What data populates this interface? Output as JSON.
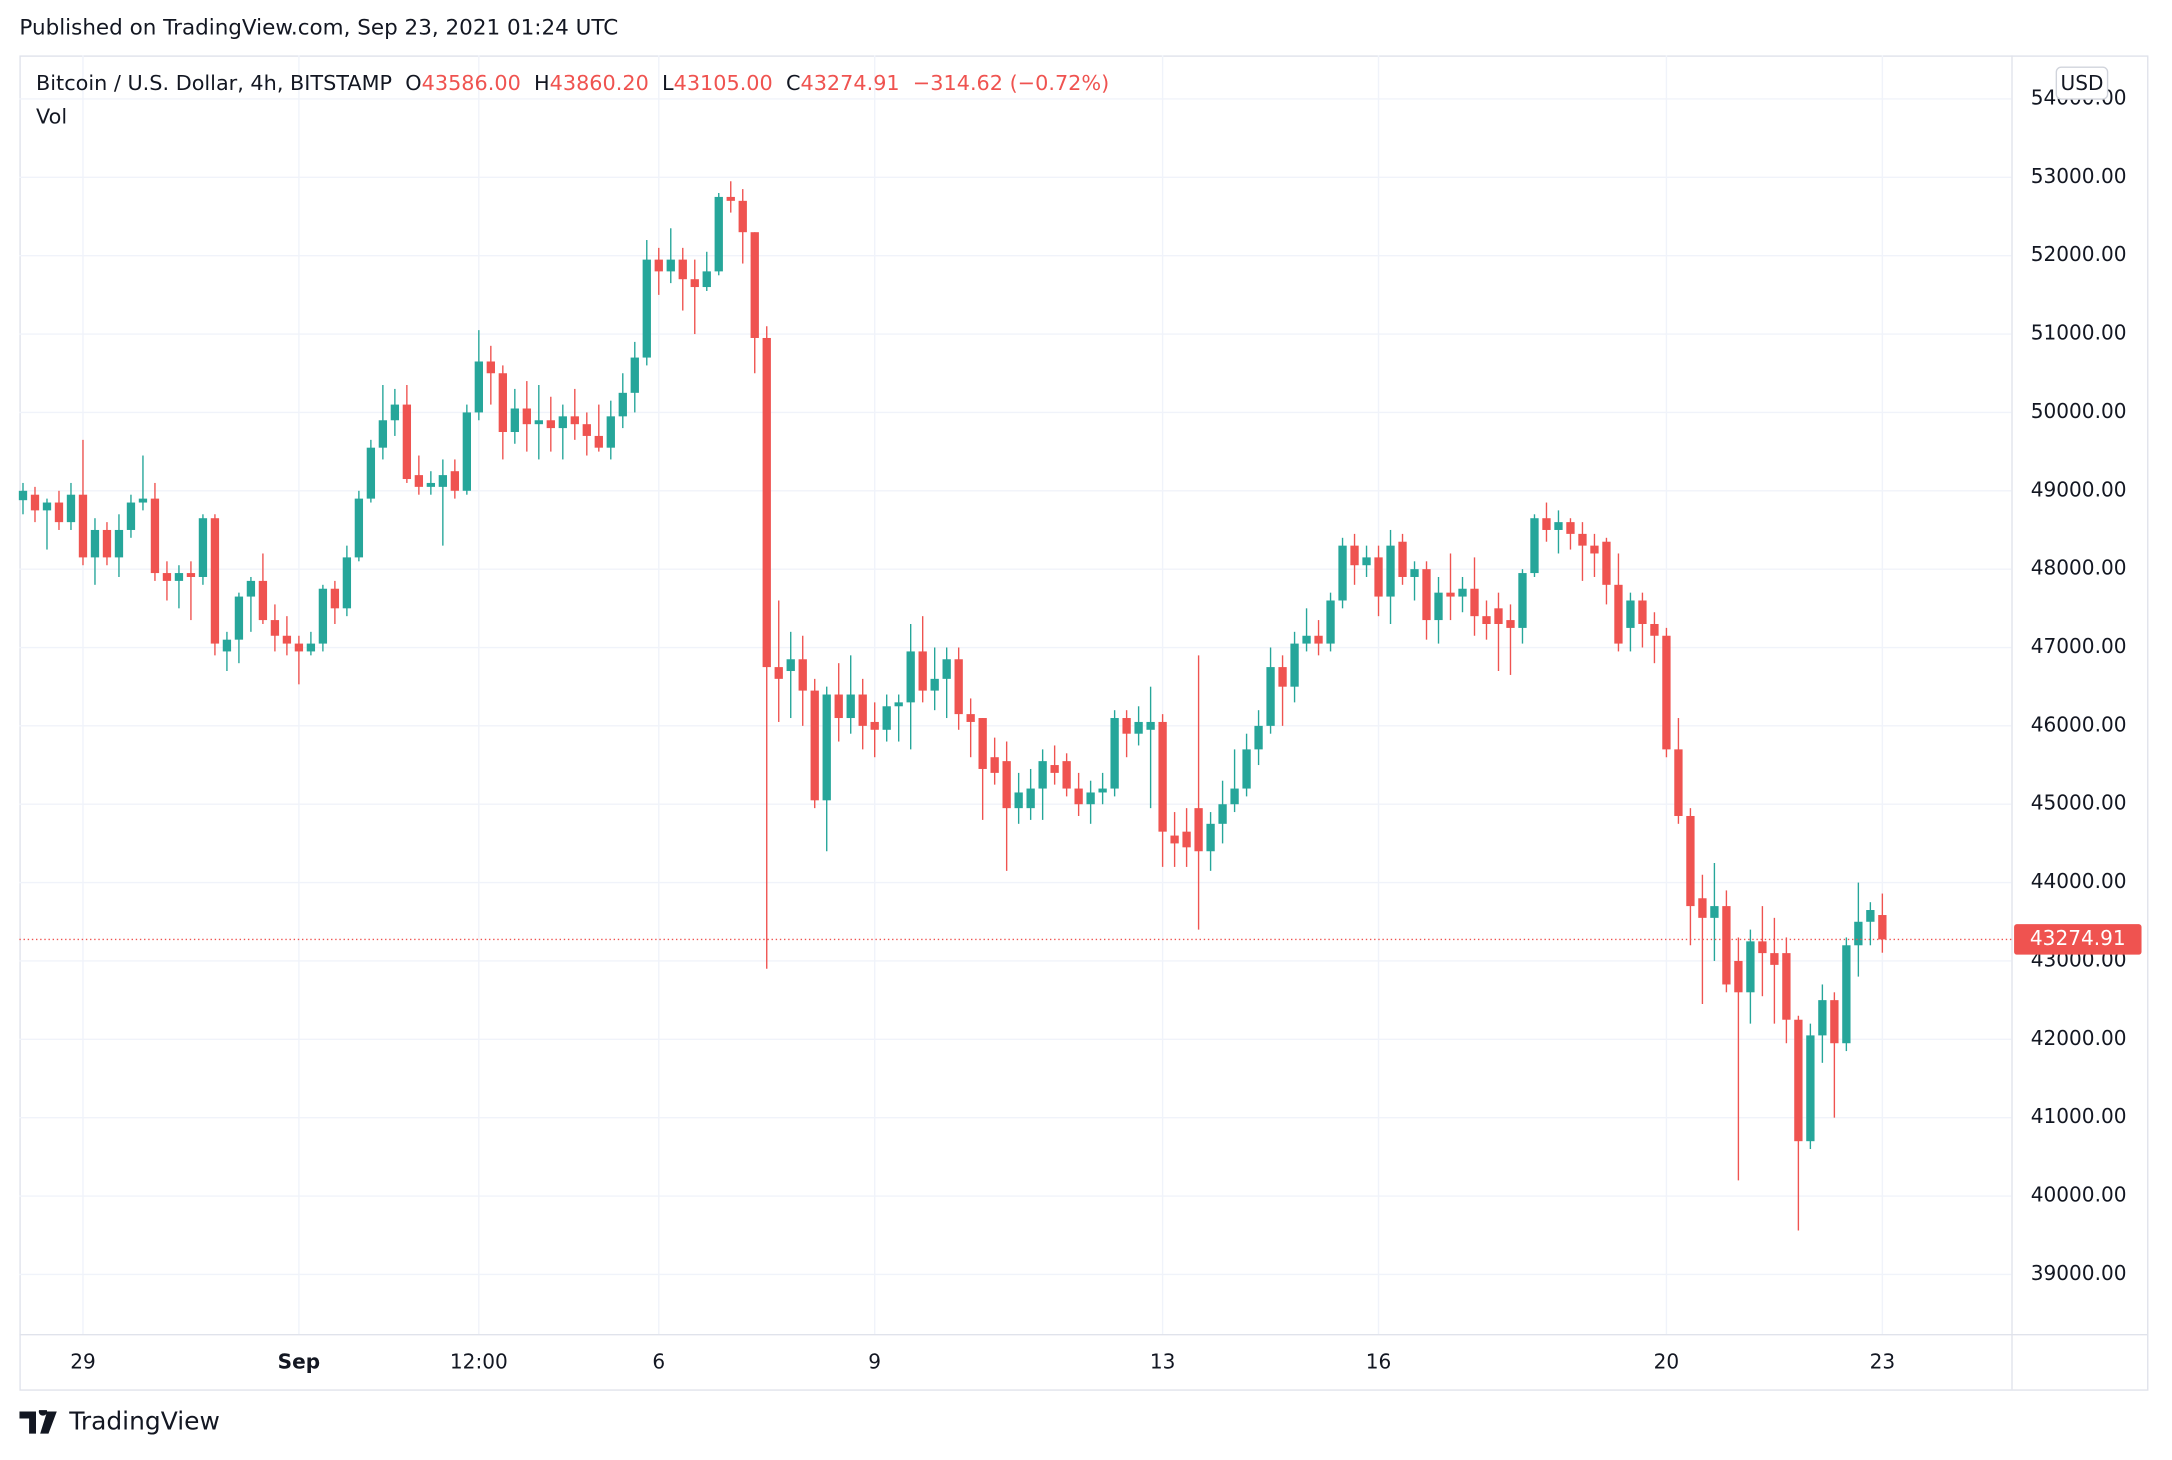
{
  "published": "Published on TradingView.com, Sep 23, 2021 01:24 UTC",
  "chart_data": {
    "type": "candlestick",
    "title": "Bitcoin / U.S. Dollar, 4h, BITSTAMP",
    "volume_label": "Vol",
    "currency": "USD",
    "up_color": "#26a69a",
    "down_color": "#ef5350",
    "grid": true,
    "legend": {
      "open_letter": "O",
      "open": {
        "value": 43586,
        "label": "43586.00"
      },
      "high_letter": "H",
      "high": {
        "value": 43860.2,
        "label": "43860.20"
      },
      "low_letter": "L",
      "low": {
        "value": 43105,
        "label": "43105.00"
      },
      "close_letter": "C",
      "close": {
        "value": 43274.91,
        "label": "43274.91"
      },
      "change": {
        "value": -314.62,
        "label": "−314.62"
      },
      "change_pct": {
        "value": -0.72,
        "label": "(−0.72%)"
      }
    },
    "last_price": {
      "value": 43274.91,
      "label": "43274.91"
    },
    "xlim": [
      -0.3,
      165.75
    ],
    "xticks": [
      {
        "value": 5,
        "label": "29"
      },
      {
        "value": 23,
        "label": "Sep"
      },
      {
        "value": 38,
        "label": "12:00"
      },
      {
        "value": 53,
        "label": "6"
      },
      {
        "value": 71,
        "label": "9"
      },
      {
        "value": 95,
        "label": "13"
      },
      {
        "value": 113,
        "label": "16"
      },
      {
        "value": 137,
        "label": "20"
      },
      {
        "value": 155,
        "label": "23"
      }
    ],
    "ylim": [
      38240,
      54556
    ],
    "yticks": [
      {
        "value": 39000,
        "label": "39000.00"
      },
      {
        "value": 40000,
        "label": "40000.00"
      },
      {
        "value": 41000,
        "label": "41000.00"
      },
      {
        "value": 42000,
        "label": "42000.00"
      },
      {
        "value": 43000,
        "label": "43000.00"
      },
      {
        "value": 44000,
        "label": "44000.00"
      },
      {
        "value": 45000,
        "label": "45000.00"
      },
      {
        "value": 46000,
        "label": "46000.00"
      },
      {
        "value": 47000,
        "label": "47000.00"
      },
      {
        "value": 48000,
        "label": "48000.00"
      },
      {
        "value": 49000,
        "label": "49000.00"
      },
      {
        "value": 50000,
        "label": "50000.00"
      },
      {
        "value": 51000,
        "label": "51000.00"
      },
      {
        "value": 52000,
        "label": "52000.00"
      },
      {
        "value": 53000,
        "label": "53000.00"
      },
      {
        "value": 54000,
        "label": "54000.00"
      }
    ],
    "open": [
      48880,
      48950,
      48750,
      48850,
      48600,
      48950,
      48150,
      48500,
      48150,
      48500,
      48850,
      48900,
      47950,
      47850,
      47950,
      47900,
      48650,
      46950,
      47100,
      47650,
      47850,
      47350,
      47150,
      47050,
      46950,
      47050,
      47750,
      47500,
      48150,
      48900,
      49550,
      49900,
      50100,
      49200,
      49050,
      49050,
      49250,
      49000,
      50000,
      50650,
      50500,
      49750,
      50050,
      49850,
      49900,
      49800,
      49950,
      49850,
      49700,
      49550,
      49950,
      50250,
      50700,
      51950,
      51800,
      51950,
      51700,
      51600,
      51800,
      52750,
      52700,
      52300,
      50950,
      46750,
      46700,
      46850,
      46450,
      45050,
      46400,
      46100,
      46400,
      46050,
      45950,
      46250,
      46300,
      46950,
      46450,
      46600,
      46850,
      46150,
      46100,
      45600,
      45550,
      44950,
      44950,
      45200,
      45500,
      45550,
      45200,
      45000,
      45150,
      45200,
      46100,
      45900,
      45950,
      46050,
      44600,
      44650,
      44950,
      44400,
      44750,
      45000,
      45200,
      45700,
      46000,
      46750,
      46500,
      47050,
      47150,
      47050,
      47600,
      48300,
      48050,
      48150,
      47650,
      48350,
      47900,
      48000,
      47350,
      47700,
      47650,
      47750,
      47400,
      47500,
      47350,
      47250,
      47950,
      48650,
      48500,
      48600,
      48450,
      48300,
      48350,
      47800,
      47250,
      47600,
      47300,
      47150,
      45700,
      44850,
      43800,
      43550,
      43700,
      43000,
      42600,
      43250,
      43100,
      43100,
      42250,
      40700,
      42050,
      42500,
      41950,
      43200,
      43500,
      43586
    ],
    "high": [
      49100,
      49050,
      48900,
      49000,
      49100,
      49650,
      48650,
      48600,
      48700,
      48950,
      49450,
      49100,
      48100,
      48050,
      48100,
      48700,
      48700,
      47200,
      47700,
      47900,
      48200,
      47550,
      47400,
      47150,
      47200,
      47800,
      47850,
      48300,
      49000,
      49650,
      50350,
      50300,
      50350,
      49450,
      49250,
      49400,
      49400,
      50100,
      51050,
      50850,
      50600,
      50300,
      50400,
      50350,
      50200,
      50100,
      50300,
      50000,
      50100,
      50150,
      50500,
      50900,
      52200,
      52100,
      52350,
      52100,
      51950,
      52050,
      52800,
      52950,
      52850,
      52300,
      51100,
      47600,
      47200,
      47150,
      46600,
      46500,
      46800,
      46900,
      46600,
      46300,
      46400,
      46400,
      47300,
      47400,
      47000,
      47000,
      47000,
      46350,
      46100,
      45850,
      45800,
      45400,
      45450,
      45700,
      45750,
      45650,
      45400,
      45300,
      45400,
      46200,
      46200,
      46250,
      46500,
      46150,
      44900,
      44950,
      46900,
      44900,
      45300,
      45700,
      45900,
      46200,
      47000,
      46900,
      47200,
      47500,
      47350,
      47700,
      48400,
      48450,
      48300,
      48300,
      48500,
      48450,
      48100,
      48100,
      47900,
      48200,
      47900,
      48150,
      47600,
      47700,
      47550,
      48000,
      48700,
      48850,
      48750,
      48650,
      48600,
      48450,
      48400,
      48200,
      47700,
      47700,
      47450,
      47250,
      46100,
      44950,
      44100,
      44250,
      43900,
      43300,
      43400,
      43700,
      43550,
      43300,
      42300,
      42200,
      42700,
      42600,
      43300,
      44000,
      43750,
      43860.2
    ],
    "low": [
      48700,
      48600,
      48250,
      48500,
      48500,
      48050,
      47800,
      48050,
      47900,
      48400,
      48750,
      47850,
      47600,
      47500,
      47350,
      47800,
      46900,
      46700,
      46800,
      47200,
      47300,
      46950,
      46900,
      46530,
      46900,
      46950,
      47300,
      47400,
      48100,
      48850,
      49400,
      49700,
      49100,
      48950,
      48950,
      48300,
      48900,
      48950,
      49900,
      50100,
      49400,
      49600,
      49500,
      49400,
      49500,
      49400,
      49650,
      49450,
      49500,
      49400,
      49800,
      50000,
      50600,
      51500,
      51650,
      51300,
      51000,
      51550,
      51750,
      52550,
      51900,
      50500,
      42900,
      46050,
      46100,
      46000,
      44950,
      44400,
      45800,
      45900,
      45700,
      45600,
      45800,
      45800,
      45700,
      46300,
      46200,
      46100,
      45950,
      45600,
      44800,
      45250,
      44150,
      44750,
      44800,
      44800,
      45250,
      45100,
      44850,
      44750,
      45000,
      45100,
      45600,
      45750,
      44950,
      44200,
      44200,
      44200,
      43400,
      44150,
      44500,
      44900,
      45100,
      45500,
      45900,
      46000,
      46300,
      46950,
      46900,
      46950,
      47500,
      47800,
      47900,
      47400,
      47300,
      47800,
      47600,
      47100,
      47050,
      47350,
      47450,
      47150,
      47100,
      46700,
      46650,
      47050,
      47900,
      48350,
      48200,
      48250,
      47850,
      47900,
      47550,
      46950,
      46950,
      47000,
      46800,
      45600,
      44750,
      43200,
      42450,
      43000,
      42600,
      40200,
      42200,
      42550,
      42200,
      41950,
      39560,
      40600,
      41700,
      41000,
      41850,
      42800,
      43200,
      43105
    ],
    "close": [
      49000,
      48750,
      48850,
      48600,
      48950,
      48150,
      48500,
      48150,
      48500,
      48850,
      48900,
      47950,
      47850,
      47950,
      47900,
      48650,
      47050,
      47100,
      47650,
      47850,
      47350,
      47150,
      47050,
      46950,
      47050,
      47750,
      47500,
      48150,
      48900,
      49550,
      49900,
      50100,
      49150,
      49050,
      49100,
      49200,
      49000,
      50000,
      50650,
      50500,
      49750,
      50050,
      49850,
      49900,
      49800,
      49950,
      49850,
      49700,
      49550,
      49950,
      50250,
      50700,
      51950,
      51800,
      51950,
      51700,
      51600,
      51800,
      52750,
      52700,
      52300,
      50950,
      46750,
      46600,
      46850,
      46450,
      45050,
      46400,
      46100,
      46400,
      46000,
      45950,
      46250,
      46300,
      46950,
      46450,
      46600,
      46850,
      46150,
      46050,
      45450,
      45400,
      44950,
      45150,
      45200,
      45550,
      45400,
      45200,
      45000,
      45150,
      45200,
      46100,
      45900,
      46050,
      46050,
      44650,
      44500,
      44450,
      44400,
      44750,
      45000,
      45200,
      45700,
      46000,
      46750,
      46500,
      47050,
      47150,
      47050,
      47600,
      48300,
      48050,
      48150,
      47650,
      48300,
      47900,
      48000,
      47350,
      47700,
      47650,
      47750,
      47400,
      47300,
      47300,
      47250,
      47950,
      48650,
      48500,
      48600,
      48450,
      48300,
      48200,
      47800,
      47050,
      47600,
      47300,
      47150,
      45700,
      44850,
      43700,
      43550,
      43700,
      42700,
      42600,
      43250,
      43100,
      42950,
      42250,
      40700,
      42050,
      42500,
      41950,
      43200,
      43500,
      43650,
      43274.91
    ]
  },
  "footer": {
    "brand": "TradingView"
  }
}
